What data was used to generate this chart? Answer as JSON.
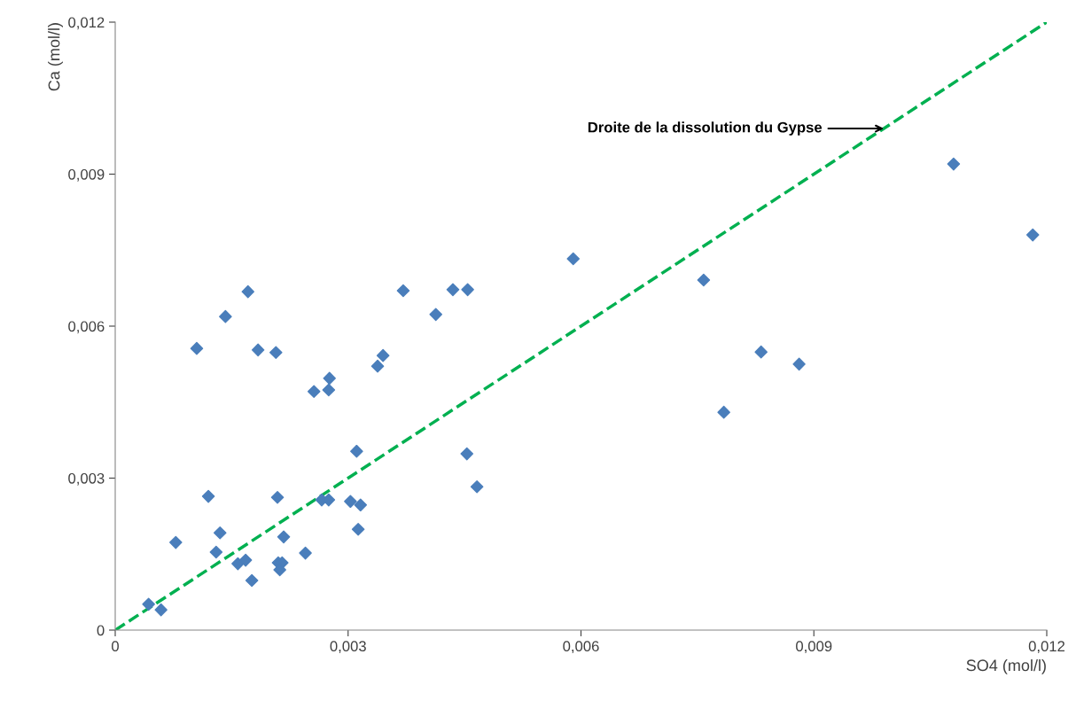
{
  "chart_data": {
    "type": "scatter",
    "xlabel": "SO4 (mol/l)",
    "ylabel": "Ca (mol/l)",
    "xlim": [
      0,
      0.012
    ],
    "ylim": [
      0,
      0.012
    ],
    "xticks": [
      0,
      {
        "value": 0.003,
        "label": "0,003"
      },
      {
        "value": 0.006,
        "label": "0,006"
      },
      {
        "value": 0.009,
        "label": "0,009"
      },
      {
        "value": 0.012,
        "label": "0,012"
      }
    ],
    "yticks": [
      0,
      {
        "value": 0.003,
        "label": "0,003"
      },
      {
        "value": 0.006,
        "label": "0,006"
      },
      {
        "value": 0.009,
        "label": "0,009"
      },
      {
        "value": 0.012,
        "label": "0,012"
      }
    ],
    "grid": false,
    "series": [
      {
        "color": "#4a7ebb",
        "marker": "diamond",
        "x": [
          0.00043,
          0.00059,
          0.00078,
          0.00105,
          0.0012,
          0.0013,
          0.00135,
          0.00142,
          0.00158,
          0.00168,
          0.00171,
          0.00176,
          0.00184,
          0.00207,
          0.00209,
          0.0021,
          0.00215,
          0.00212,
          0.00217,
          0.00245,
          0.00256,
          0.00266,
          0.00275,
          0.00276,
          0.00275,
          0.00303,
          0.00311,
          0.00313,
          0.00316,
          0.00338,
          0.00345,
          0.00371,
          0.00413,
          0.00435,
          0.00453,
          0.00454,
          0.00466,
          0.0059,
          0.00758,
          0.00784,
          0.00832,
          0.00881,
          0.0108,
          0.01182
        ],
        "values": [
          0.00051,
          0.0004,
          0.00173,
          0.00556,
          0.00264,
          0.00154,
          0.00192,
          0.00619,
          0.00131,
          0.00138,
          0.00668,
          0.00098,
          0.00553,
          0.00548,
          0.00262,
          0.00133,
          0.00133,
          0.00119,
          0.00184,
          0.00152,
          0.00471,
          0.00257,
          0.00257,
          0.00497,
          0.00474,
          0.00254,
          0.00353,
          0.00199,
          0.00247,
          0.00521,
          0.00542,
          0.0067,
          0.00623,
          0.00672,
          0.00348,
          0.00672,
          0.00283,
          0.00733,
          0.00691,
          0.0043,
          0.00549,
          0.00525,
          0.0092,
          0.0078
        ]
      },
      {
        "type": "line",
        "color": "#00b050",
        "line_style": "dashed",
        "marker": "none",
        "x": [
          0,
          0.012
        ],
        "values": [
          0,
          0.012
        ]
      }
    ],
    "annotations": [
      {
        "text": "Droite de la dissolution du Gypse",
        "x": 0.0099,
        "y": 0.0099
      }
    ]
  }
}
